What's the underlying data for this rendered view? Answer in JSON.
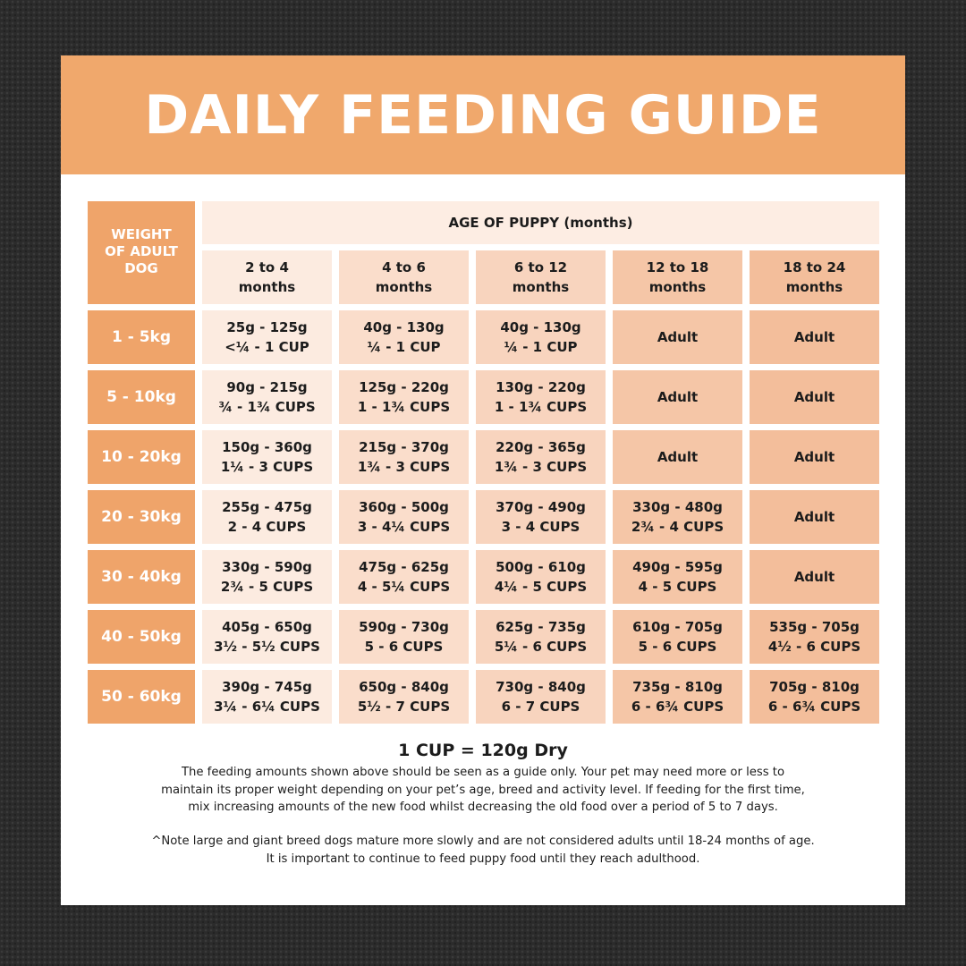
{
  "title": "DAILY FEEDING GUIDE",
  "colors": {
    "banner": "#F0A86C",
    "weight_column": "#EFA46A"
  },
  "table": {
    "weight_header": [
      "WEIGHT",
      "OF ADULT",
      "DOG"
    ],
    "age_header": "AGE OF PUPPY (months)",
    "columns": [
      [
        "2 to 4",
        "months"
      ],
      [
        "4 to 6",
        "months"
      ],
      [
        "6 to 12",
        "months"
      ],
      [
        "12 to 18",
        "months"
      ],
      [
        "18 to 24",
        "months"
      ]
    ],
    "rows": [
      {
        "weight": "1 - 5kg",
        "cells": [
          [
            "25g - 125g",
            "<¼ - 1 CUP"
          ],
          [
            "40g - 130g",
            "¼ - 1 CUP"
          ],
          [
            "40g - 130g",
            "¼ - 1 CUP"
          ],
          [
            "Adult"
          ],
          [
            "Adult"
          ]
        ]
      },
      {
        "weight": "5 - 10kg",
        "cells": [
          [
            "90g - 215g",
            "¾ - 1¾ CUPS"
          ],
          [
            "125g - 220g",
            "1 - 1¾ CUPS"
          ],
          [
            "130g - 220g",
            "1 - 1¾ CUPS"
          ],
          [
            "Adult"
          ],
          [
            "Adult"
          ]
        ]
      },
      {
        "weight": "10 - 20kg",
        "cells": [
          [
            "150g - 360g",
            "1¼ - 3 CUPS"
          ],
          [
            "215g - 370g",
            "1¾ - 3 CUPS"
          ],
          [
            "220g - 365g",
            "1¾ - 3 CUPS"
          ],
          [
            "Adult"
          ],
          [
            "Adult"
          ]
        ]
      },
      {
        "weight": "20 - 30kg",
        "cells": [
          [
            "255g - 475g",
            "2 - 4 CUPS"
          ],
          [
            "360g - 500g",
            "3 - 4¼ CUPS"
          ],
          [
            "370g - 490g",
            "3 - 4 CUPS"
          ],
          [
            "330g - 480g",
            "2¾ - 4 CUPS"
          ],
          [
            "Adult"
          ]
        ]
      },
      {
        "weight": "30 - 40kg",
        "cells": [
          [
            "330g - 590g",
            "2¾ - 5 CUPS"
          ],
          [
            "475g - 625g",
            "4 - 5¼ CUPS"
          ],
          [
            "500g - 610g",
            "4¼ - 5 CUPS"
          ],
          [
            "490g - 595g",
            "4 - 5 CUPS"
          ],
          [
            "Adult"
          ]
        ]
      },
      {
        "weight": "40 - 50kg",
        "cells": [
          [
            "405g - 650g",
            "3½ - 5½ CUPS"
          ],
          [
            "590g - 730g",
            "5 - 6 CUPS"
          ],
          [
            "625g - 735g",
            "5¼ - 6 CUPS"
          ],
          [
            "610g - 705g",
            "5 - 6 CUPS"
          ],
          [
            "535g - 705g",
            "4½ - 6 CUPS"
          ]
        ]
      },
      {
        "weight": "50 - 60kg",
        "cells": [
          [
            "390g - 745g",
            "3¼ - 6¼ CUPS"
          ],
          [
            "650g - 840g",
            "5½ - 7 CUPS"
          ],
          [
            "730g - 840g",
            "6 - 7 CUPS"
          ],
          [
            "735g - 810g",
            "6 - 6¾ CUPS"
          ],
          [
            "705g - 810g",
            "6 - 6¾ CUPS"
          ]
        ]
      }
    ]
  },
  "footer": {
    "cup_note": "1 CUP = 120g Dry",
    "guide_lines": [
      "The feeding amounts shown above should be seen as a guide only. Your pet may need more or less to",
      "maintain its proper weight depending on your pet’s age, breed and activity level. If feeding for the first time,",
      "mix increasing amounts of the new food whilst decreasing the old food over a period of 5 to 7 days."
    ],
    "note_lines": [
      "^Note large and giant breed dogs mature more slowly and are not considered adults until 18-24 months of age.",
      "It is important to continue to feed puppy food until they reach adulthood."
    ]
  }
}
